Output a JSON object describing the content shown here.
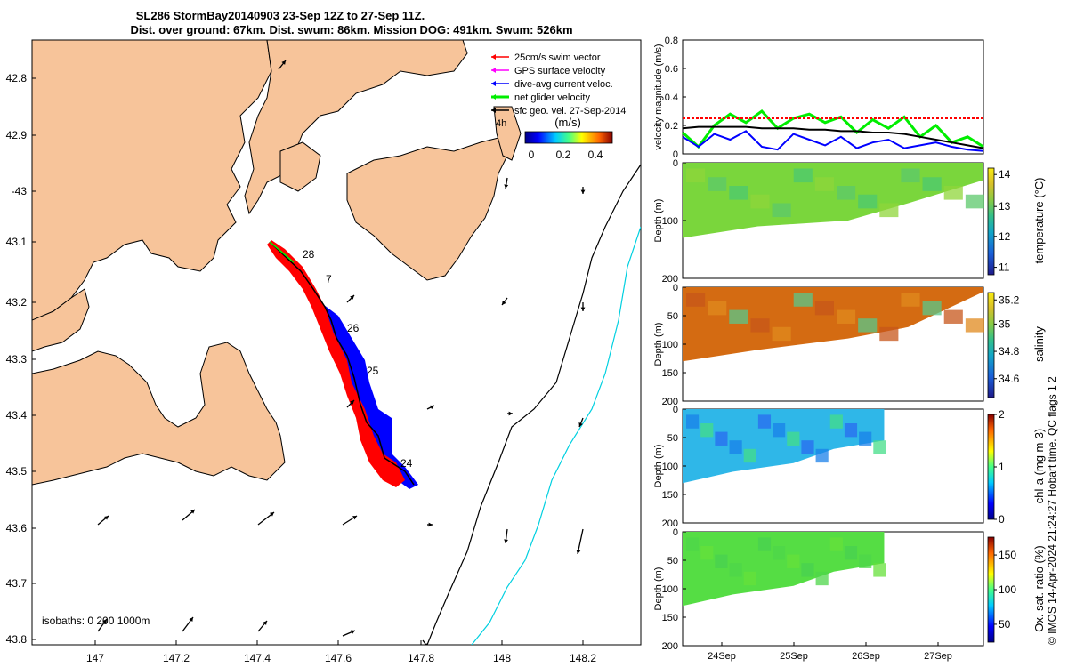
{
  "header": {
    "title_line1": "SL286 StormBay20140903 23-Sep 12Z to 27-Sep 11Z.",
    "title_line2": "Dist. over ground: 67km. Dist. swum: 86km. Mission DOG: 491km. Swum: 526km"
  },
  "colors": {
    "land": "#f7c49a",
    "glider_red": "#ff0000",
    "glider_blue": "#0000ff",
    "net_green": "#00ee00",
    "gps_magenta": "#ff00ff",
    "isobath_cyan": "#00d0e0"
  },
  "map": {
    "lon_ticks": [
      "147",
      "147.2",
      "147.4",
      "147.6",
      "147.8",
      "148",
      "148.2"
    ],
    "lat_ticks": [
      "42.8",
      "42.9",
      "-43",
      "43.1",
      "43.2",
      "43.3",
      "43.4",
      "43.5",
      "43.6",
      "43.7",
      "43.8"
    ],
    "legend": [
      {
        "label": "25cm/s swim vector",
        "color": "#ff0000"
      },
      {
        "label": "GPS surface velocity",
        "color": "#ff00ff"
      },
      {
        "label": "dive-avg current veloc.",
        "color": "#0000ff"
      },
      {
        "label": "net glider velocity",
        "color": "#00ee00"
      },
      {
        "label": "sfc geo. vel. 27-Sep-2014",
        "color": "#000000"
      }
    ],
    "legend_suffix": "4h",
    "colorbar_title": "(m/s)",
    "colorbar_ticks": [
      "0",
      "0.2",
      "0.4"
    ],
    "day_labels": [
      "28",
      "7",
      "26",
      "25",
      "24"
    ],
    "isobath_label": "isobaths: 0   200  1000m"
  },
  "chart_data": [
    {
      "type": "line",
      "ylabel": "velocity magnitude (m/s)",
      "ylim": [
        0,
        0.8
      ],
      "y_ticks": [
        "0",
        "0.2",
        "0.4",
        "0.6",
        "0.8"
      ],
      "x_range": [
        "23-Sep 12Z",
        "27-Sep 11Z"
      ],
      "series": [
        {
          "color": "#00ee00",
          "values": [
            0.15,
            0.05,
            0.2,
            0.28,
            0.22,
            0.3,
            0.18,
            0.25,
            0.28,
            0.22,
            0.26,
            0.15,
            0.24,
            0.18,
            0.26,
            0.12,
            0.2,
            0.08,
            0.12,
            0.05
          ]
        },
        {
          "color": "#0000ff",
          "values": [
            0.12,
            0.05,
            0.14,
            0.1,
            0.16,
            0.05,
            0.03,
            0.14,
            0.1,
            0.06,
            0.12,
            0.04,
            0.08,
            0.1,
            0.04,
            0.06,
            0.08,
            0.05,
            0.03,
            0.02
          ]
        },
        {
          "color": "#000000",
          "values": [
            0.18,
            0.19,
            0.19,
            0.19,
            0.19,
            0.18,
            0.18,
            0.18,
            0.17,
            0.17,
            0.16,
            0.16,
            0.15,
            0.15,
            0.14,
            0.12,
            0.1,
            0.08,
            0.06,
            0.04
          ]
        },
        {
          "color": "#ff0000",
          "values": [
            0.25,
            0.25,
            0.25,
            0.25,
            0.25,
            0.25,
            0.25,
            0.25,
            0.25,
            0.25,
            0.25,
            0.25,
            0.25,
            0.25,
            0.25,
            0.25,
            0.25,
            0.25,
            0.25,
            0.25
          ]
        }
      ]
    },
    {
      "type": "heatmap",
      "ylabel": "Depth (m)",
      "colorbar_label": "temperature (°C)",
      "colorbar_ticks": [
        "11",
        "12",
        "13",
        "14"
      ],
      "clim": [
        10.5,
        14.8
      ],
      "y_ticks": [
        "0",
        "100",
        "200"
      ]
    },
    {
      "type": "heatmap",
      "ylabel": "Depth (m)",
      "colorbar_label": "salinity",
      "colorbar_ticks": [
        "34.6",
        "34.8",
        "35",
        "35.2"
      ],
      "clim": [
        34.5,
        35.3
      ],
      "y_ticks": [
        "0",
        "50",
        "100",
        "150",
        "200"
      ]
    },
    {
      "type": "heatmap",
      "ylabel": "Depth (m)",
      "colorbar_label": "chl-a (mg m-3)",
      "colorbar_ticks": [
        "0",
        "1",
        "2"
      ],
      "clim": [
        0,
        2
      ],
      "y_ticks": [
        "0",
        "50",
        "100",
        "150",
        "200"
      ]
    },
    {
      "type": "heatmap",
      "ylabel": "Depth (m)",
      "colorbar_label": "Ox. sat. ratio (%)",
      "colorbar_ticks": [
        "50",
        "100",
        "150"
      ],
      "clim": [
        25,
        175
      ],
      "y_ticks": [
        "0",
        "50",
        "100",
        "150",
        "200"
      ]
    }
  ],
  "time_axis": {
    "ticks": [
      "24Sep",
      "25Sep",
      "26Sep",
      "27Sep"
    ]
  },
  "footer_right": "© IMOS 14-Apr-2024 21:24:27 Hobart time. QC flags 1  2"
}
